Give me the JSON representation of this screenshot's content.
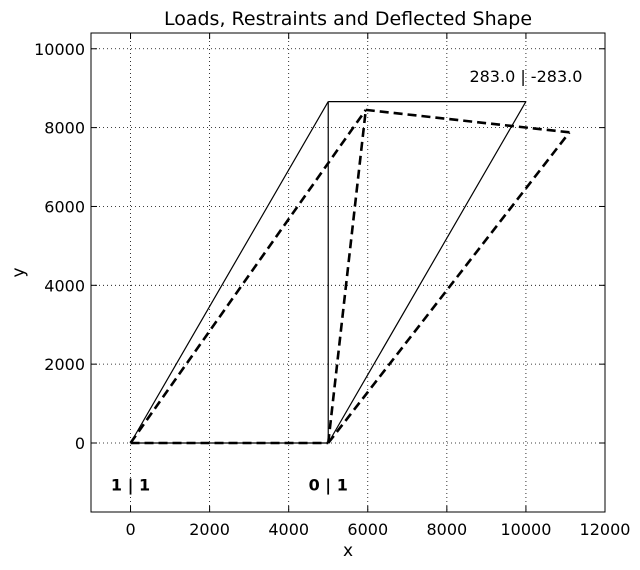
{
  "chart_data": {
    "type": "line",
    "title": "Loads, Restraints and Deflected Shape",
    "xlabel": "x",
    "ylabel": "y",
    "xlim": [
      -1000,
      12000
    ],
    "ylim": [
      -1750,
      10400
    ],
    "xticks": [
      0,
      2000,
      4000,
      6000,
      8000,
      10000,
      12000
    ],
    "yticks": [
      0,
      2000,
      4000,
      6000,
      8000,
      10000
    ],
    "grid": true,
    "series": [
      {
        "style": "solid",
        "color": "#000000",
        "segments": [
          [
            [
              0,
              0
            ],
            [
              5000,
              0
            ]
          ],
          [
            [
              0,
              0
            ],
            [
              5000,
              8660
            ]
          ],
          [
            [
              5000,
              0
            ],
            [
              5000,
              8660
            ]
          ],
          [
            [
              5000,
              0
            ],
            [
              10000,
              8660
            ]
          ],
          [
            [
              5000,
              8660
            ],
            [
              10000,
              8660
            ]
          ]
        ]
      },
      {
        "style": "dashed",
        "color": "#000000",
        "segments": [
          [
            [
              0,
              0
            ],
            [
              5000,
              0
            ]
          ],
          [
            [
              0,
              0
            ],
            [
              5950,
              8450
            ]
          ],
          [
            [
              5000,
              0
            ],
            [
              5950,
              8450
            ]
          ],
          [
            [
              5000,
              0
            ],
            [
              11100,
              7880
            ]
          ],
          [
            [
              5950,
              8450
            ],
            [
              11100,
              7880
            ]
          ]
        ]
      }
    ],
    "annotations": [
      {
        "text": "283.0 | -283.0",
        "x": 10000,
        "y": 9160,
        "bold": false
      },
      {
        "text": "1 | 1",
        "x": 0,
        "y": -1200,
        "bold": true
      },
      {
        "text": "0 | 1",
        "x": 5000,
        "y": -1200,
        "bold": true
      }
    ]
  }
}
